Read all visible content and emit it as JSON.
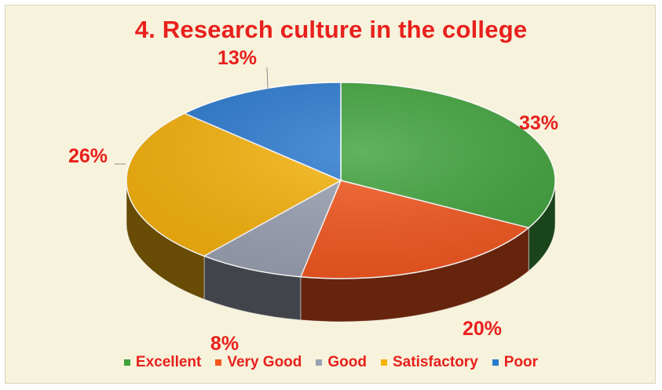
{
  "chart_data": {
    "type": "pie",
    "title": "4. Research culture in the college",
    "categories": [
      "Excellent",
      "Very Good",
      "Good",
      "Satisfactory",
      "Poor"
    ],
    "values": [
      33,
      20,
      8,
      26,
      13
    ],
    "value_labels": [
      "33%",
      "20%",
      "8%",
      "26%",
      "13%"
    ],
    "colors": [
      "#3fa23b",
      "#f4561e",
      "#9aa1b2",
      "#f7b20a",
      "#2a7ad0"
    ],
    "style": "3d-tilted",
    "start": "top, clockwise",
    "legend_position": "bottom"
  }
}
